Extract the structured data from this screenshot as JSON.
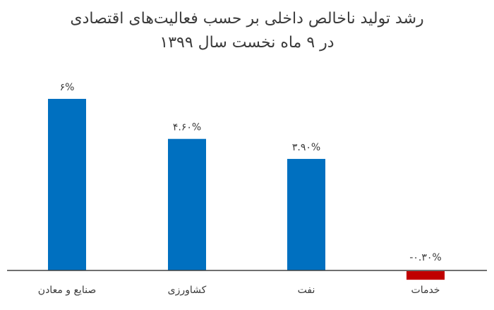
{
  "chart_data": {
    "type": "bar",
    "title": "رشد تولید ناخالص داخلی بر حسب فعالیت‌های اقتصادی",
    "subtitle": "در ۹ ماه نخست سال ۱۳۹۹",
    "categories": [
      "صنایع و معادن",
      "کشاورزی",
      "نفت",
      "خدمات"
    ],
    "values": [
      6,
      4.6,
      3.9,
      -0.3
    ],
    "data_labels": [
      "۶%",
      "۴.۶۰%",
      "۳.۹۰%",
      "-۰.۳۰%"
    ],
    "colors": [
      "#0070c0",
      "#0070c0",
      "#0070c0",
      "#c00000"
    ],
    "xlabel": "",
    "ylabel": "",
    "ylim": [
      -0.5,
      6.6
    ],
    "grid": false
  }
}
